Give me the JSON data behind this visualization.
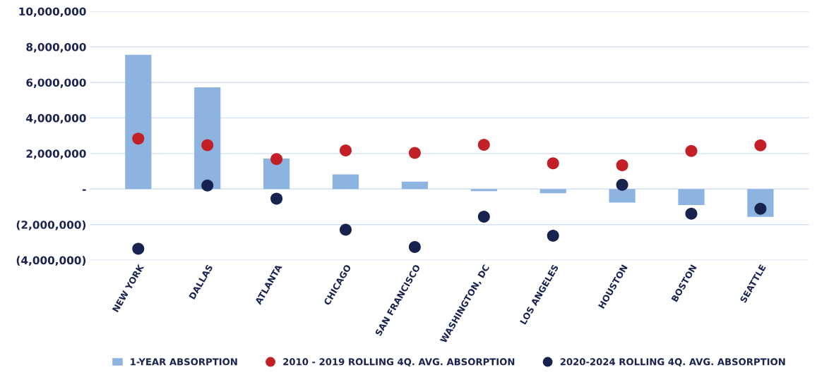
{
  "chart_data": {
    "type": "bar",
    "categories": [
      "NEW YORK",
      "DALLAS",
      "ATLANTA",
      "CHICAGO",
      "SAN FRANCISCO",
      "WASHINGTON, DC",
      "LOS ANGELES",
      "HOUSTON",
      "BOSTON",
      "SEATTLE"
    ],
    "series": [
      {
        "name": "1-YEAR ABSORPTION",
        "color": "#8db3e0",
        "values": [
          7550000,
          5720000,
          1720000,
          820000,
          420000,
          -120000,
          -240000,
          -760000,
          -900000,
          -1570000
        ]
      },
      {
        "name": "2010 - 2019 ROLLING 4Q. AVG. ABSORPTION",
        "type": "scatter",
        "color": "#c21f26",
        "values": [
          2840000,
          2470000,
          1690000,
          2170000,
          2030000,
          2490000,
          1450000,
          1340000,
          2140000,
          2460000
        ]
      },
      {
        "name": "2020-2024 ROLLING 4Q. AVG. ABSORPTION",
        "type": "scatter",
        "color": "#18224f",
        "values": [
          -3360000,
          200000,
          -540000,
          -2290000,
          -3260000,
          -1560000,
          -2630000,
          240000,
          -1390000,
          -1110000
        ]
      }
    ],
    "ylim": [
      -4000000,
      10000000
    ],
    "yticks": [
      {
        "value": -4000000,
        "label": "(4,000,000)"
      },
      {
        "value": -2000000,
        "label": "(2,000,000)"
      },
      {
        "value": 0,
        "label": "-"
      },
      {
        "value": 2000000,
        "label": "2,000,000"
      },
      {
        "value": 4000000,
        "label": "4,000,000"
      },
      {
        "value": 6000000,
        "label": "6,000,000"
      },
      {
        "value": 8000000,
        "label": "8,000,000"
      },
      {
        "value": 10000000,
        "label": "10,000,000"
      }
    ],
    "grid": "y",
    "legend": "bottom",
    "marker": "circle"
  }
}
